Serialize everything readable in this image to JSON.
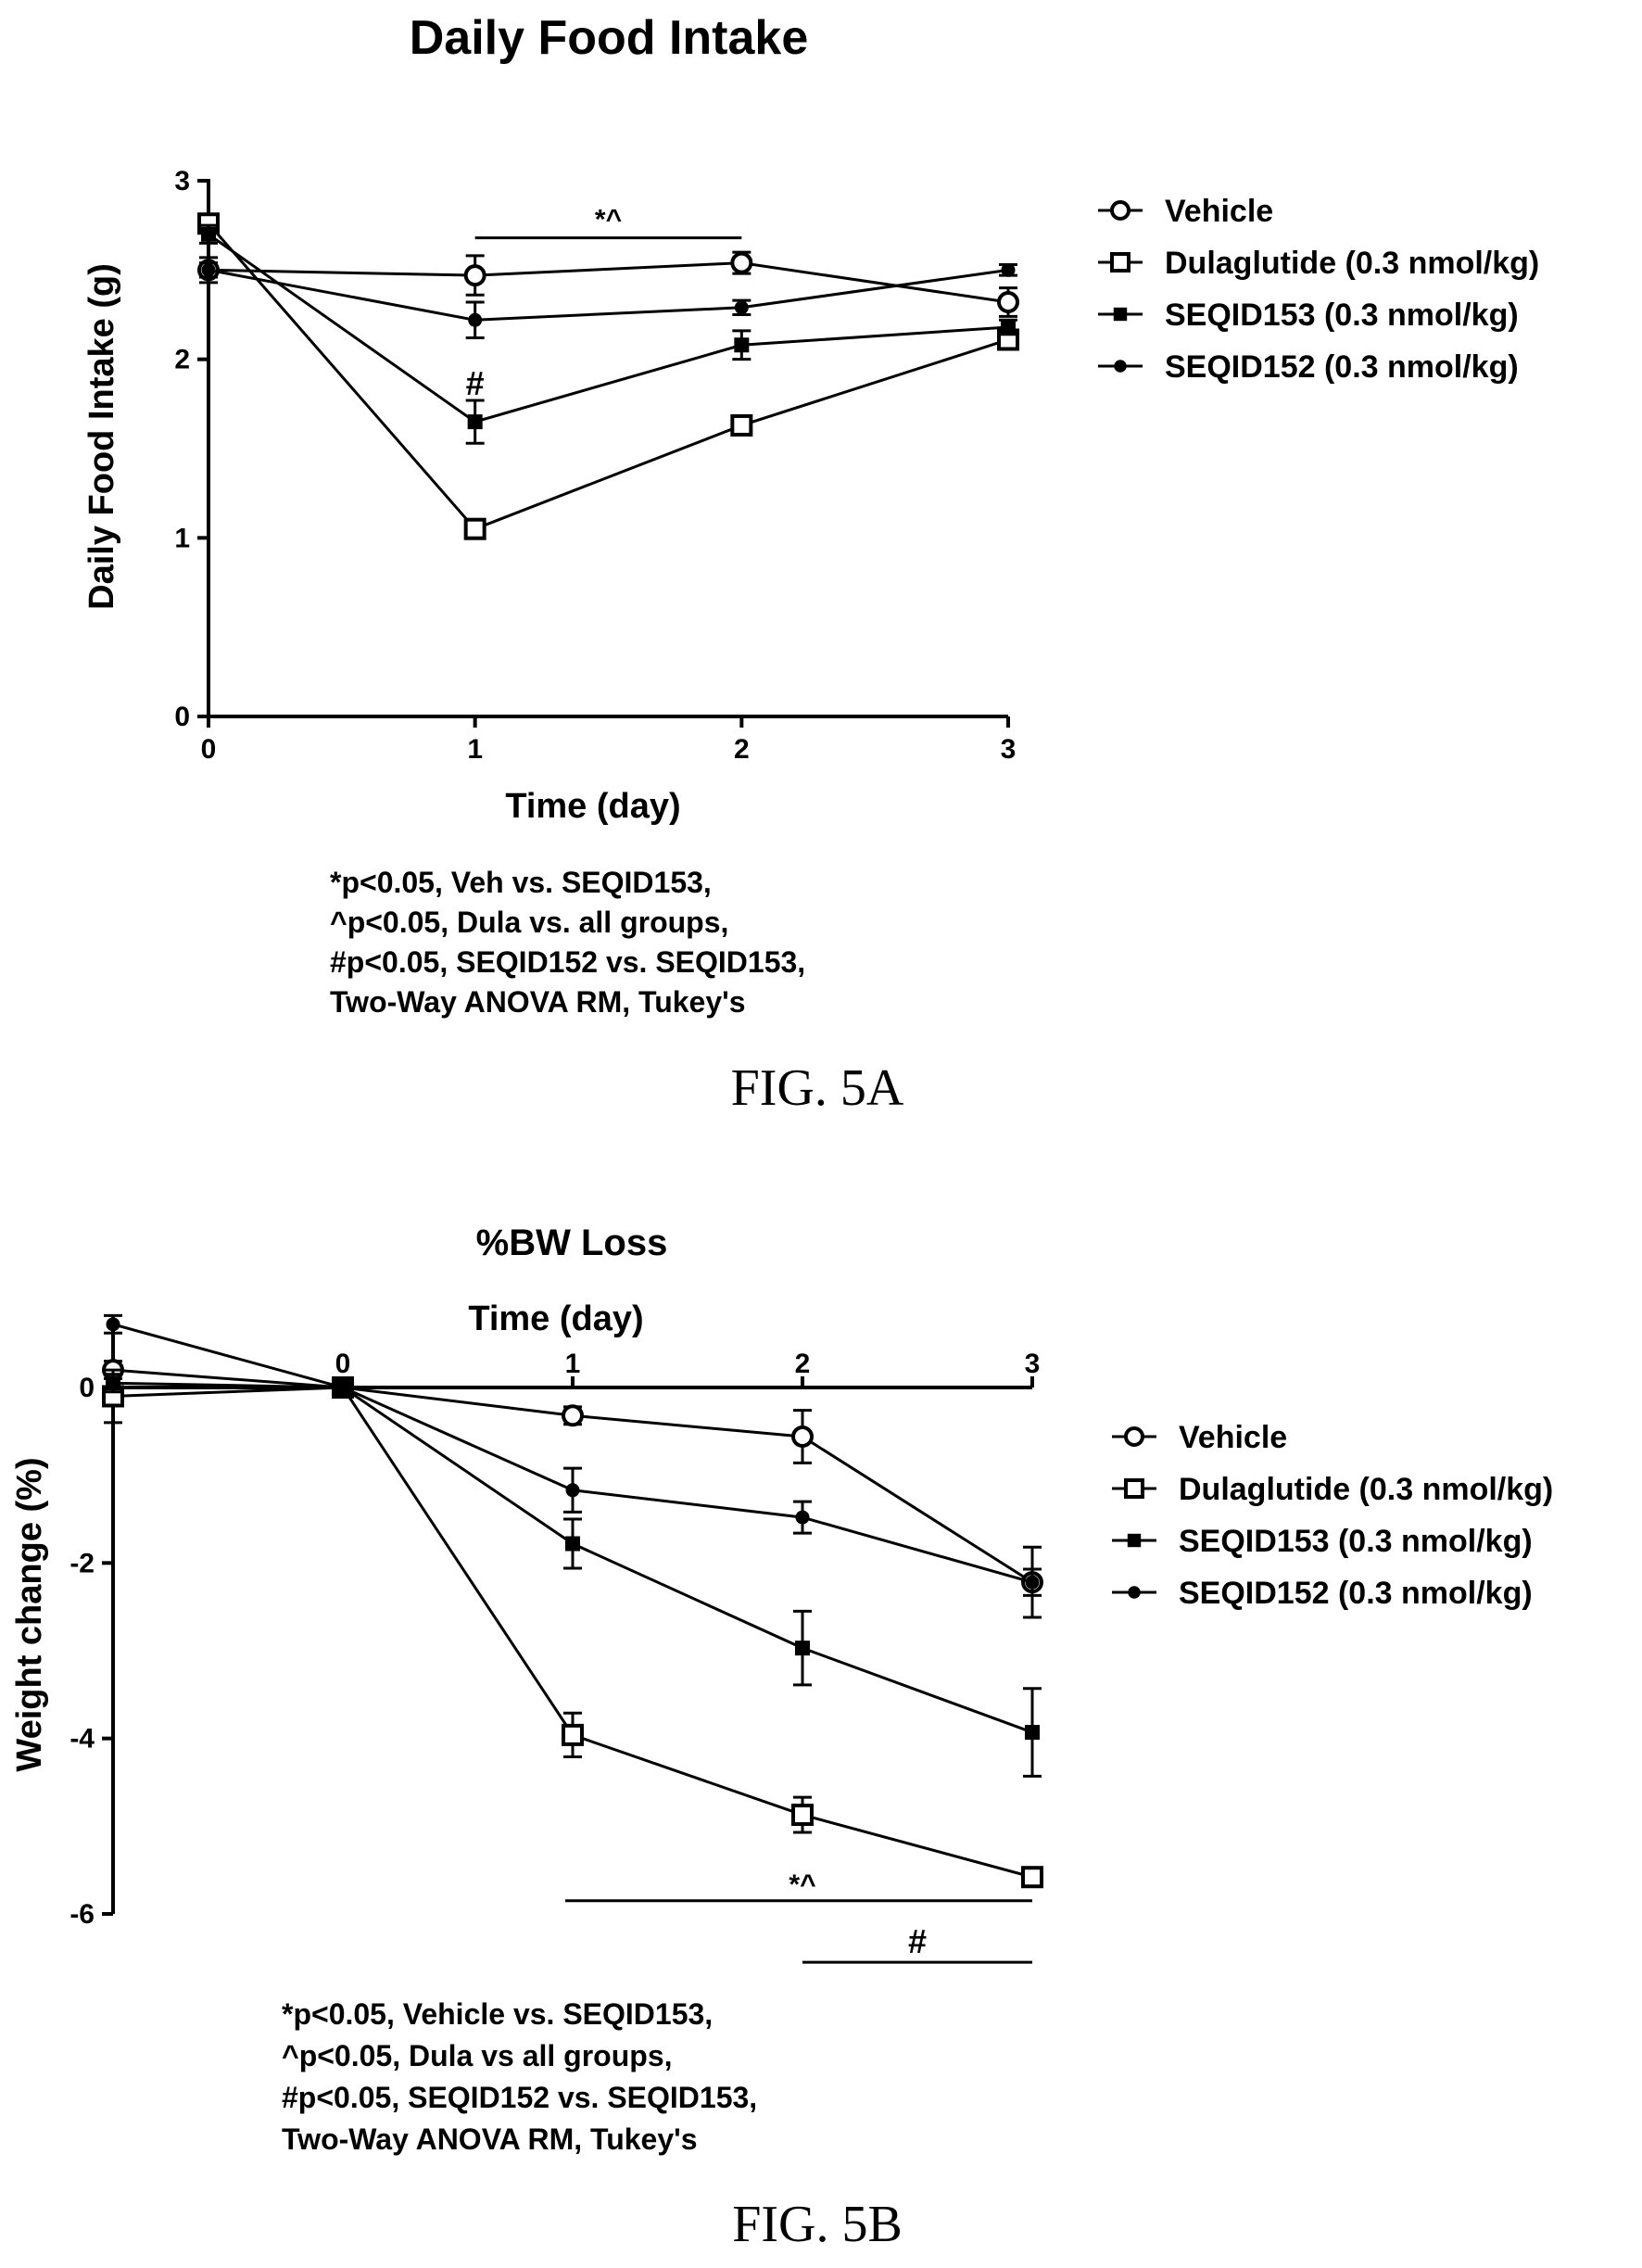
{
  "chart_data": [
    {
      "type": "line",
      "title": "Daily Food Intake",
      "xlabel": "Time (day)",
      "ylabel": "Daily Food Intake (g)",
      "x": [
        0,
        1,
        2,
        3
      ],
      "xticks": [
        "0",
        "1",
        "2",
        "3"
      ],
      "yticks": [
        "0",
        "1",
        "2",
        "3"
      ],
      "xlim": [
        0,
        3
      ],
      "ylim": [
        0,
        3
      ],
      "legend_position": "right",
      "series": [
        {
          "name": "Vehicle",
          "marker": "open-circle",
          "values": [
            2.5,
            2.47,
            2.54,
            2.32
          ],
          "errors": [
            0.07,
            0.11,
            0.06,
            0.08
          ]
        },
        {
          "name": "Dulaglutide (0.3 nmol/kg)",
          "marker": "open-square",
          "values": [
            2.76,
            1.05,
            1.63,
            2.11
          ],
          "errors": [
            0.05,
            0.05,
            0.04,
            0.05
          ]
        },
        {
          "name": "SEQID153 (0.3 nmol/kg)",
          "marker": "filled-square",
          "values": [
            2.7,
            1.65,
            2.08,
            2.18
          ],
          "errors": [
            0.05,
            0.12,
            0.08,
            0.04
          ]
        },
        {
          "name": "SEQID152 (0.3 nmol/kg)",
          "marker": "filled-circle",
          "values": [
            2.5,
            2.22,
            2.29,
            2.5
          ],
          "errors": [
            0.04,
            0.1,
            0.04,
            0.03
          ]
        }
      ],
      "annotations": [
        {
          "text": "*^",
          "x_from": 1,
          "x_to": 2,
          "y": 2.68
        },
        {
          "text": "#",
          "x": 1,
          "y": 1.8
        }
      ],
      "notes": [
        "*p<0.05, Veh vs. SEQID153,",
        "^p<0.05, Dula vs. all groups,",
        "#p<0.05, SEQID152 vs. SEQID153,",
        "Two-Way ANOVA RM, Tukey's"
      ],
      "figure_label": "FIG. 5A"
    },
    {
      "type": "line",
      "title": "%BW Loss",
      "xlabel": "Time (day)",
      "ylabel": "Weight change (%)",
      "x": [
        -1,
        0,
        1,
        2,
        3
      ],
      "xticks": [
        "0",
        "1",
        "2",
        "3"
      ],
      "yticks": [
        "0",
        "-2",
        "-4",
        "-6"
      ],
      "xlim": [
        -1,
        3
      ],
      "ylim": [
        -6,
        0.8
      ],
      "legend_position": "right",
      "series": [
        {
          "name": "Vehicle",
          "marker": "open-circle",
          "values": [
            0.2,
            0,
            -0.32,
            -0.56,
            -2.22
          ],
          "errors": [
            0.1,
            0,
            0.1,
            0.3,
            0.4
          ]
        },
        {
          "name": "Dulaglutide (0.3 nmol/kg)",
          "marker": "open-square",
          "values": [
            -0.1,
            0,
            -3.96,
            -4.87,
            -5.58
          ],
          "errors": [
            0.3,
            0,
            0.25,
            0.2,
            0.08
          ]
        },
        {
          "name": "SEQID153 (0.3 nmol/kg)",
          "marker": "filled-square",
          "values": [
            0.05,
            0,
            -1.78,
            -2.97,
            -3.93
          ],
          "errors": [
            0.1,
            0,
            0.28,
            0.42,
            0.5
          ]
        },
        {
          "name": "SEQID152 (0.3 nmol/kg)",
          "marker": "filled-circle",
          "values": [
            0.72,
            0,
            -1.17,
            -1.48,
            -2.22
          ],
          "errors": [
            0.1,
            0,
            0.25,
            0.18,
            0.15
          ]
        }
      ],
      "annotations": [
        {
          "text": "*^",
          "x_from": 1,
          "x_to": 3,
          "y": -5.85
        },
        {
          "text": "#",
          "x_from": 2,
          "x_to": 3,
          "y": -6.55
        }
      ],
      "notes": [
        "*p<0.05, Vehicle vs. SEQID153,",
        "^p<0.05, Dula vs all groups,",
        "#p<0.05, SEQID152 vs. SEQID153,",
        "Two-Way ANOVA  RM, Tukey's"
      ],
      "figure_label": "FIG. 5B"
    }
  ]
}
